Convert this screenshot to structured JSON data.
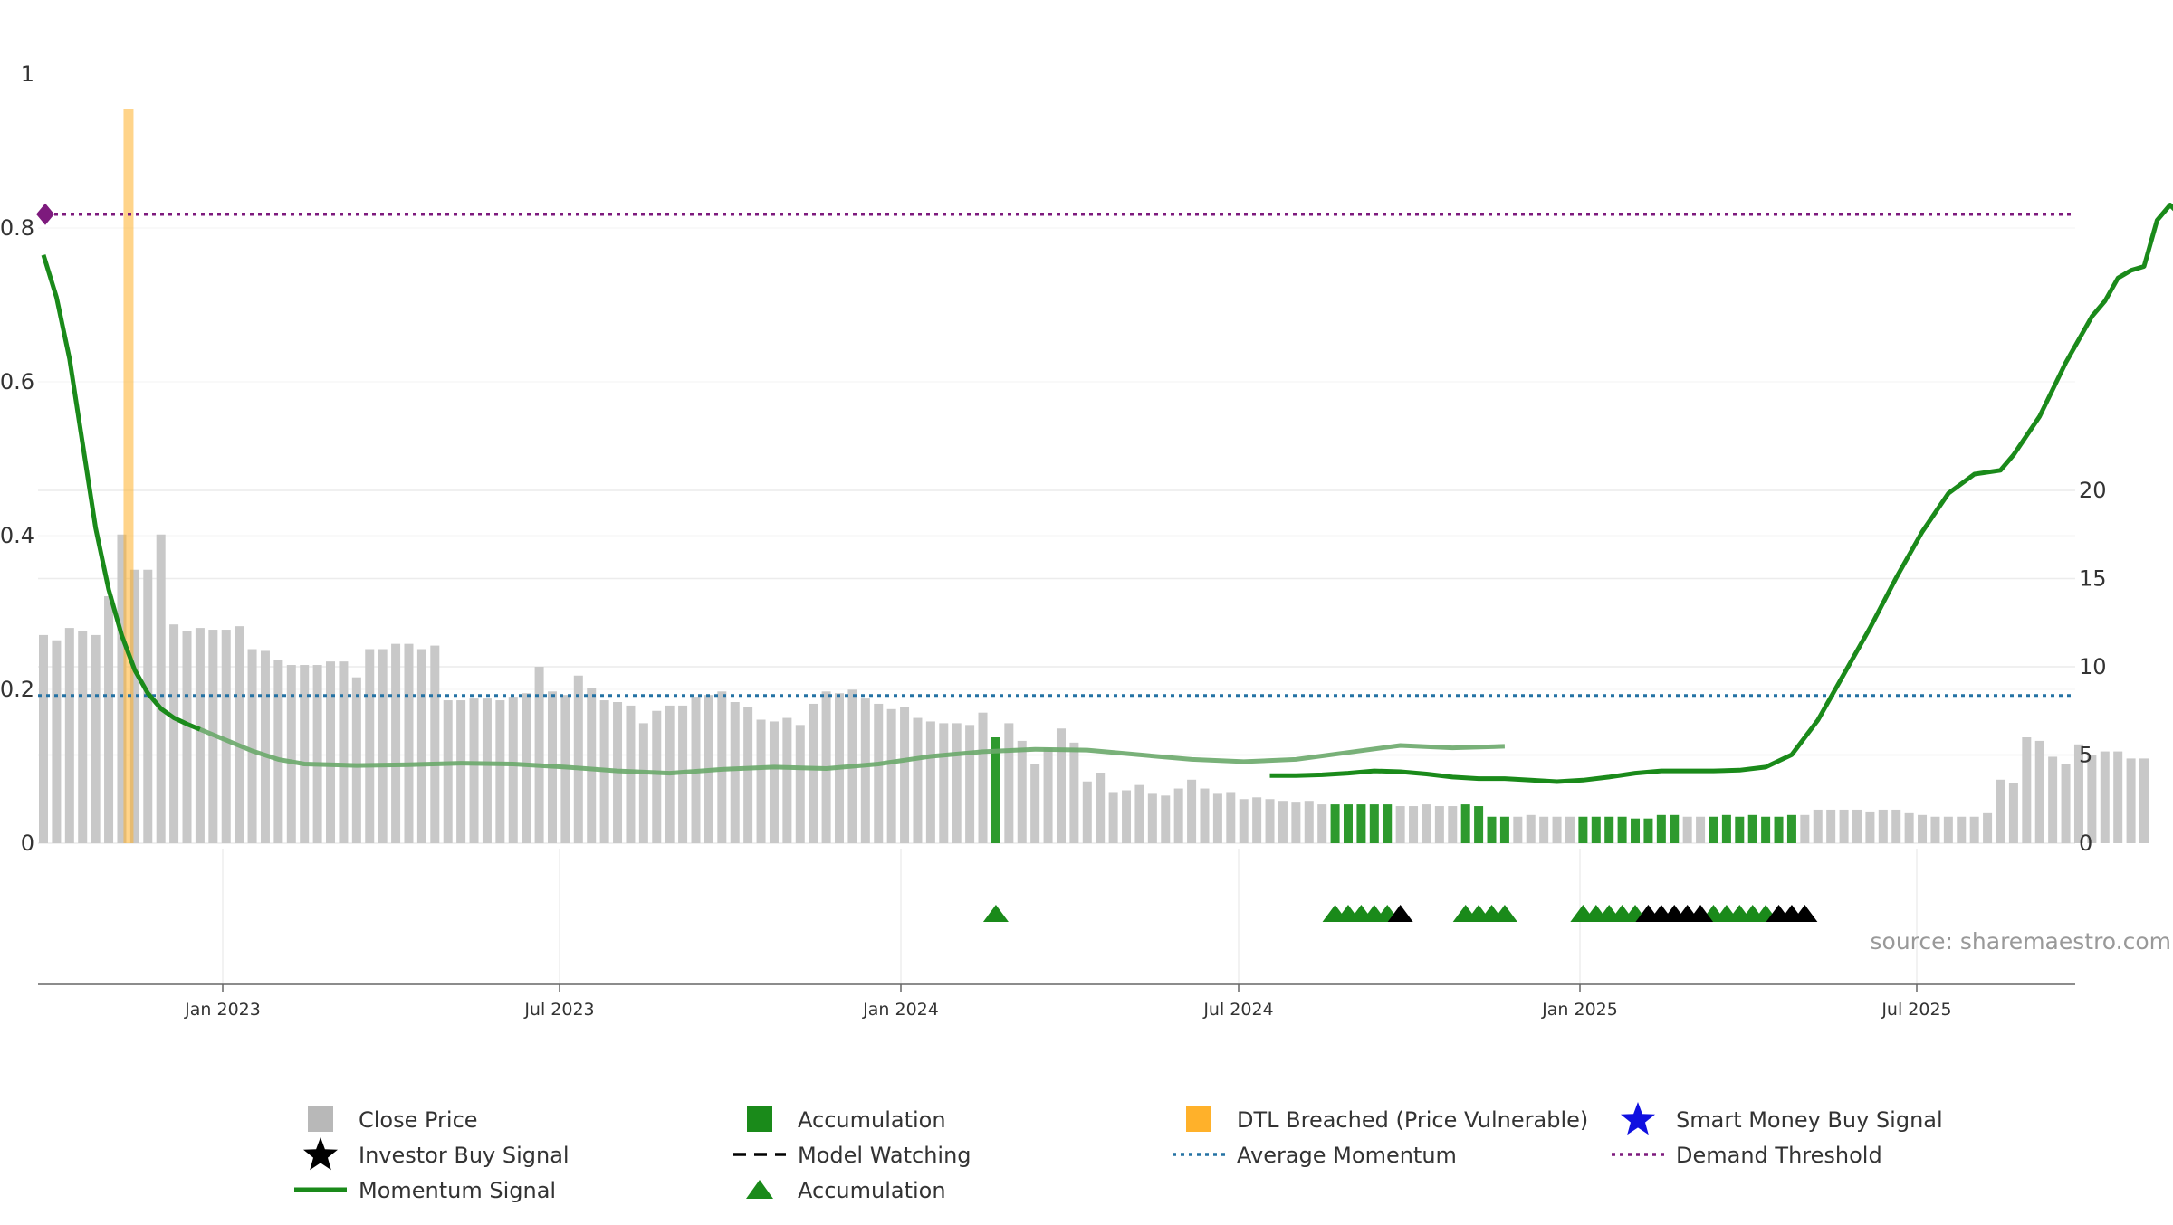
{
  "chart_data": {
    "type": "bar",
    "source": "source: sharemaestro.com",
    "x_axis": {
      "ticks": [
        "Jan 2023",
        "Jul 2023",
        "Jan 2024",
        "Jul 2024",
        "Jan 2025",
        "Jul 2025"
      ]
    },
    "y_left": {
      "ticks": [
        "0",
        "0.2",
        "0.4",
        "0.6",
        "0.8",
        "1"
      ],
      "range": [
        0,
        1
      ]
    },
    "y_right": {
      "ticks": [
        "0",
        "5",
        "10",
        "15",
        "20"
      ],
      "range": [
        0,
        24
      ]
    },
    "close_price": {
      "name": "Close Price",
      "color": "#c8c8c8",
      "accumulation_color": "#2e9a2e",
      "values": [
        11.8,
        11.5,
        12.2,
        12.0,
        11.8,
        14.0,
        17.5,
        15.5,
        15.5,
        17.5,
        12.4,
        12.0,
        12.2,
        12.1,
        12.1,
        12.3,
        11.0,
        10.9,
        10.4,
        10.1,
        10.1,
        10.1,
        10.3,
        10.3,
        9.4,
        11.0,
        11.0,
        11.3,
        11.3,
        11.0,
        11.2,
        8.1,
        8.1,
        8.2,
        8.2,
        8.1,
        8.3,
        8.5,
        10.0,
        8.6,
        8.4,
        9.5,
        8.8,
        8.1,
        8.0,
        7.8,
        6.8,
        7.5,
        7.8,
        7.8,
        8.3,
        8.4,
        8.6,
        8.0,
        7.7,
        7.0,
        6.9,
        7.1,
        6.7,
        7.9,
        8.6,
        8.5,
        8.7,
        8.2,
        7.9,
        7.6,
        7.7,
        7.1,
        6.9,
        6.8,
        6.8,
        6.7,
        7.4,
        6.0,
        6.8,
        5.8,
        4.5,
        5.4,
        6.5,
        5.7,
        3.5,
        4.0,
        2.9,
        3.0,
        3.3,
        2.8,
        2.7,
        3.1,
        3.6,
        3.1,
        2.8,
        2.9,
        2.5,
        2.6,
        2.5,
        2.4,
        2.3,
        2.4,
        2.2,
        2.2,
        2.2,
        2.2,
        2.2,
        2.2,
        2.1,
        2.1,
        2.2,
        2.1,
        2.1,
        2.2,
        2.1,
        1.5,
        1.5,
        1.5,
        1.6,
        1.5,
        1.5,
        1.5,
        1.5,
        1.5,
        1.5,
        1.5,
        1.4,
        1.4,
        1.6,
        1.6,
        1.5,
        1.5,
        1.5,
        1.6,
        1.5,
        1.6,
        1.5,
        1.5,
        1.6,
        1.6,
        1.9,
        1.9,
        1.9,
        1.9,
        1.8,
        1.9,
        1.9,
        1.7,
        1.6,
        1.5,
        1.5,
        1.5,
        1.5,
        1.7,
        3.6,
        3.4,
        6.0,
        5.8,
        4.9,
        4.5,
        5.6,
        5.0,
        5.2,
        5.2,
        4.8,
        4.8
      ],
      "accumulation_bars": [
        73,
        99,
        100,
        101,
        102,
        103,
        109,
        110,
        111,
        112,
        118,
        119,
        120,
        121,
        122,
        123,
        124,
        125,
        128,
        129,
        130,
        131,
        132,
        133,
        134
      ]
    },
    "dtl_breached": {
      "name": "DTL Breached (Price Vulnerable)",
      "color": "#ffb12a",
      "index": 6
    },
    "momentum": {
      "name": "Momentum Signal",
      "color": "#1a8a1a",
      "points": [
        [
          0,
          0.765
        ],
        [
          1,
          0.71
        ],
        [
          2,
          0.63
        ],
        [
          3,
          0.52
        ],
        [
          4,
          0.41
        ],
        [
          5,
          0.33
        ],
        [
          6,
          0.27
        ],
        [
          7,
          0.225
        ],
        [
          8,
          0.195
        ],
        [
          9,
          0.175
        ],
        [
          10,
          0.163
        ],
        [
          11,
          0.155
        ],
        [
          12,
          0.148
        ],
        [
          14,
          0.134
        ],
        [
          16,
          0.12
        ],
        [
          18,
          0.109
        ],
        [
          20,
          0.103
        ],
        [
          24,
          0.101
        ],
        [
          28,
          0.102
        ],
        [
          32,
          0.104
        ],
        [
          36,
          0.103
        ],
        [
          40,
          0.099
        ],
        [
          44,
          0.094
        ],
        [
          48,
          0.091
        ],
        [
          52,
          0.096
        ],
        [
          56,
          0.099
        ],
        [
          60,
          0.097
        ],
        [
          64,
          0.103
        ],
        [
          68,
          0.113
        ],
        [
          72,
          0.119
        ],
        [
          76,
          0.122
        ],
        [
          80,
          0.121
        ],
        [
          84,
          0.115
        ],
        [
          88,
          0.109
        ],
        [
          92,
          0.106
        ],
        [
          96,
          0.109
        ],
        [
          100,
          0.118
        ],
        [
          104,
          0.127
        ],
        [
          108,
          0.124
        ],
        [
          112,
          0.126
        ]
      ],
      "mid_points": [
        [
          20,
          0.103
        ],
        [
          24,
          0.101
        ],
        [
          28,
          0.102
        ],
        [
          32,
          0.104
        ]
      ],
      "late_points": [
        [
          94,
          0.088
        ],
        [
          96,
          0.088
        ],
        [
          98,
          0.089
        ],
        [
          100,
          0.091
        ],
        [
          102,
          0.094
        ],
        [
          104,
          0.093
        ],
        [
          106,
          0.09
        ],
        [
          108,
          0.086
        ],
        [
          110,
          0.084
        ],
        [
          112,
          0.084
        ],
        [
          114,
          0.082
        ],
        [
          116,
          0.08
        ],
        [
          118,
          0.082
        ],
        [
          120,
          0.086
        ],
        [
          122,
          0.091
        ],
        [
          124,
          0.094
        ],
        [
          126,
          0.094
        ],
        [
          128,
          0.094
        ],
        [
          130,
          0.095
        ],
        [
          132,
          0.099
        ],
        [
          134,
          0.115
        ],
        [
          136,
          0.16
        ],
        [
          138,
          0.22
        ],
        [
          140,
          0.28
        ],
        [
          142,
          0.345
        ],
        [
          144,
          0.405
        ],
        [
          146,
          0.455
        ],
        [
          148,
          0.48
        ],
        [
          150,
          0.485
        ],
        [
          151,
          0.505
        ],
        [
          153,
          0.555
        ],
        [
          155,
          0.625
        ],
        [
          157,
          0.685
        ],
        [
          158,
          0.705
        ],
        [
          159,
          0.735
        ],
        [
          160,
          0.745
        ],
        [
          161,
          0.75
        ],
        [
          162,
          0.81
        ],
        [
          163,
          0.83
        ],
        [
          164,
          0.813
        ],
        [
          165,
          0.815
        ],
        [
          166,
          0.818
        ]
      ]
    },
    "average_momentum": {
      "name": "Average Momentum",
      "color": "#2472a4",
      "value": 0.192
    },
    "demand_threshold": {
      "name": "Demand Threshold",
      "color": "#7d1a7d",
      "value": 0.818
    },
    "triangles": {
      "accumulation": [
        73,
        99,
        100,
        101,
        102,
        103,
        109,
        110,
        111,
        112,
        118,
        119,
        120,
        121,
        122,
        128,
        129,
        130,
        131,
        132
      ],
      "investor": [
        104,
        123,
        124,
        125,
        126,
        127,
        133,
        134,
        135
      ],
      "color_green": "#1a8a1a",
      "color_black": "#000000"
    },
    "legend": [
      {
        "label": "Close Price",
        "symbol": "square",
        "color": "#b8b8b8"
      },
      {
        "label": "Accumulation",
        "symbol": "square",
        "color": "#1a8a1a"
      },
      {
        "label": "DTL Breached (Price Vulnerable)",
        "symbol": "square",
        "color": "#ffb12a"
      },
      {
        "label": "Smart Money Buy Signal",
        "symbol": "star",
        "color": "#1010e0"
      },
      {
        "label": "Investor Buy Signal",
        "symbol": "star",
        "color": "#000000"
      },
      {
        "label": "Model Watching",
        "symbol": "dash",
        "color": "#000000"
      },
      {
        "label": "Average Momentum",
        "symbol": "dot",
        "color": "#2472a4"
      },
      {
        "label": "Demand Threshold",
        "symbol": "dot",
        "color": "#7d1a7d"
      },
      {
        "label": "Momentum Signal",
        "symbol": "line",
        "color": "#1a8a1a"
      },
      {
        "label": "Accumulation",
        "symbol": "triangle",
        "color": "#1a8a1a"
      }
    ]
  }
}
